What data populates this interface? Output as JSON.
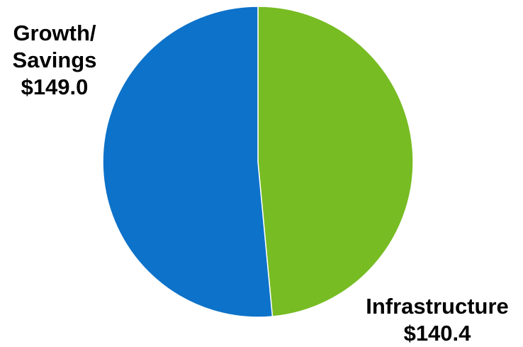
{
  "chart_data": {
    "type": "pie",
    "title": "",
    "slices": [
      {
        "label_lines": [
          "Infrastructure"
        ],
        "value_text": "$140.4",
        "value": 140.4,
        "color": "#77bc23"
      },
      {
        "label_lines": [
          "Growth/",
          "Savings"
        ],
        "value_text": "$149.0",
        "value": 149.0,
        "color": "#0d72c9"
      }
    ],
    "start_angle": "12 o'clock",
    "direction": "clockwise",
    "legend": "none"
  }
}
